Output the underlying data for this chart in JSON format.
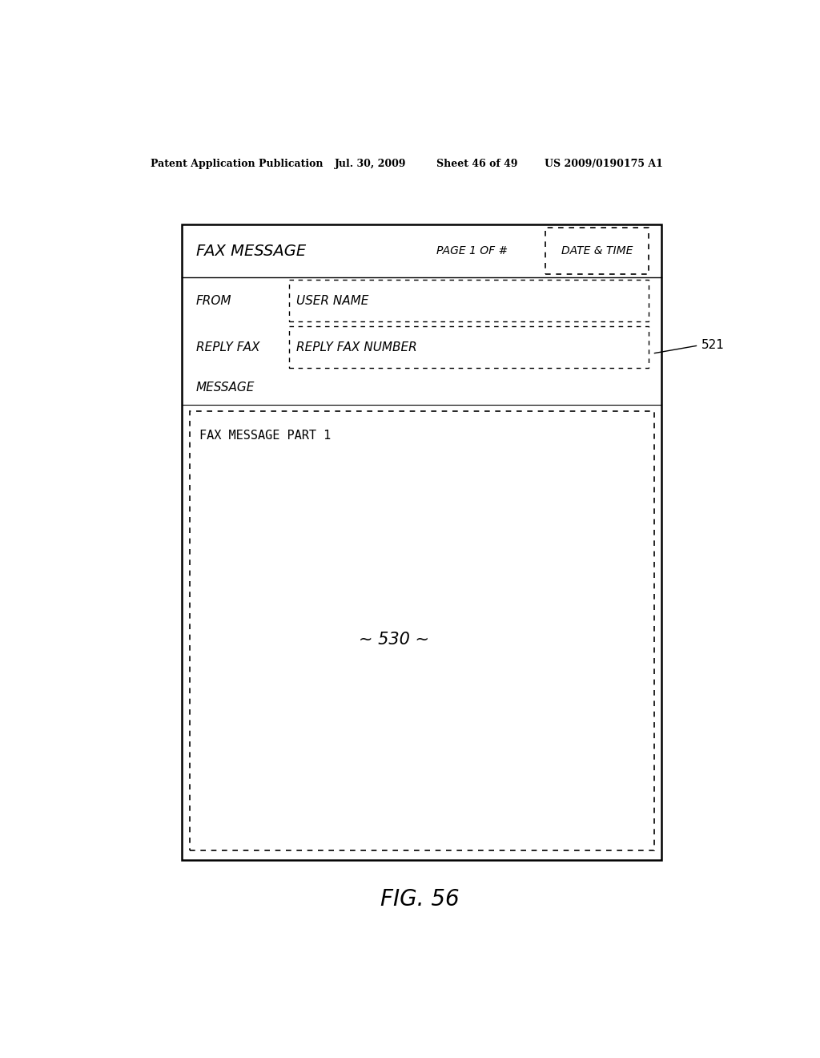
{
  "bg_color": "#ffffff",
  "header_text": "Patent Application Publication",
  "header_date": "Jul. 30, 2009",
  "header_sheet": "Sheet 46 of 49",
  "header_patent": "US 2009/0190175 A1",
  "fig_label": "FIG. 56",
  "fax_message_label": "FAX MESSAGE",
  "page_label": "PAGE 1 OF #",
  "date_time_label": "DATE & TIME",
  "from_label": "FROM",
  "user_name_label": "USER NAME",
  "reply_fax_label": "REPLY FAX",
  "reply_fax_number_label": "REPLY FAX NUMBER",
  "message_label": "MESSAGE",
  "fax_message_part1_label": "FAX MESSAGE PART 1",
  "ref_521": "521",
  "ref_530": "~ 530 ~"
}
